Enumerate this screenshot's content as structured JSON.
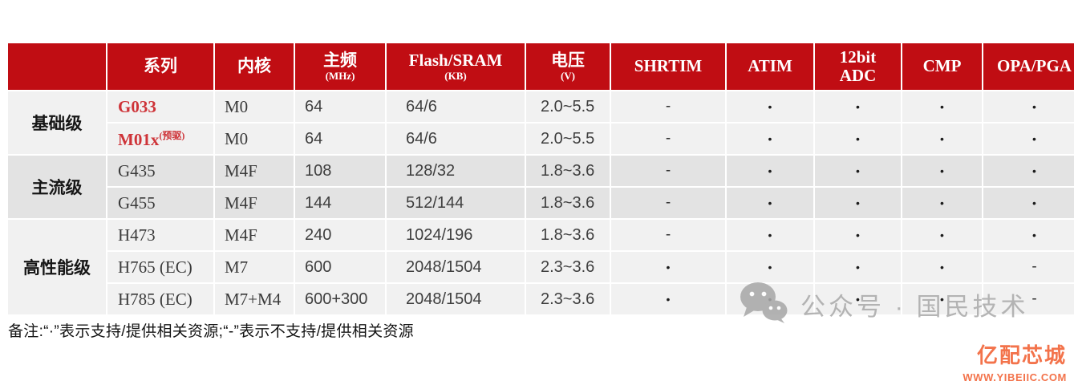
{
  "colors": {
    "header_bg": "#C00D13",
    "accent_red_text": "#CE3338",
    "band_light": "#F1F1F1",
    "band_dark": "#E3E3E3",
    "brand_orange": "#F3734B",
    "watermark_gray": "#ABABAB"
  },
  "table": {
    "columns": [
      {
        "label": "",
        "sub": ""
      },
      {
        "label": "系列",
        "sub": ""
      },
      {
        "label": "内核",
        "sub": ""
      },
      {
        "label": "主频",
        "sub": "(MHz)"
      },
      {
        "label": "Flash/SRAM",
        "sub": "(KB)"
      },
      {
        "label": "电压",
        "sub": "(V)"
      },
      {
        "label": "SHRTIM",
        "sub": ""
      },
      {
        "label": "ATIM",
        "sub": ""
      },
      {
        "label": "12bit",
        "sub": "ADC"
      },
      {
        "label": "CMP",
        "sub": ""
      },
      {
        "label": "OPA/PGA",
        "sub": ""
      }
    ],
    "flag_columns": [
      "SHRTIM",
      "ATIM",
      "12bit ADC",
      "CMP",
      "OPA/PGA"
    ],
    "groups": [
      {
        "name": "基础级",
        "shade": "light",
        "rows": [
          {
            "series": "G033",
            "sup": "",
            "red": true,
            "core": "M0",
            "freq": "64",
            "flash": "64/6",
            "volt": "2.0~5.5",
            "flags": [
              "-",
              "•",
              "•",
              "•",
              "•"
            ]
          },
          {
            "series": "M01x",
            "sup": "(预驱)",
            "red": true,
            "core": "M0",
            "freq": "64",
            "flash": "64/6",
            "volt": "2.0~5.5",
            "flags": [
              "-",
              "•",
              "•",
              "•",
              "•"
            ]
          }
        ]
      },
      {
        "name": "主流级",
        "shade": "dark",
        "rows": [
          {
            "series": "G435",
            "sup": "",
            "red": false,
            "core": "M4F",
            "freq": "108",
            "flash": "128/32",
            "volt": "1.8~3.6",
            "flags": [
              "-",
              "•",
              "•",
              "•",
              "•"
            ]
          },
          {
            "series": "G455",
            "sup": "",
            "red": false,
            "core": "M4F",
            "freq": "144",
            "flash": "512/144",
            "volt": "1.8~3.6",
            "flags": [
              "-",
              "•",
              "•",
              "•",
              "•"
            ]
          }
        ]
      },
      {
        "name": "高性能级",
        "shade": "light",
        "rows": [
          {
            "series": "H473",
            "sup": "",
            "red": false,
            "core": "M4F",
            "freq": "240",
            "flash": "1024/196",
            "volt": "1.8~3.6",
            "flags": [
              "-",
              "•",
              "•",
              "•",
              "•"
            ]
          },
          {
            "series": "H765 (EC)",
            "sup": "",
            "red": false,
            "core": "M7",
            "freq": "600",
            "flash": "2048/1504",
            "volt": "2.3~3.6",
            "flags": [
              "•",
              "•",
              "•",
              "•",
              "-"
            ]
          },
          {
            "series": "H785 (EC)",
            "sup": "",
            "red": false,
            "core": "M7+M4",
            "freq": "600+300",
            "flash": "2048/1504",
            "volt": "2.3~3.6",
            "flags": [
              "•",
              "•",
              "•",
              "•",
              "-"
            ]
          }
        ]
      }
    ]
  },
  "note": "备注:“·”表示支持/提供相关资源;“-”表示不支持/提供相关资源",
  "watermark": {
    "text": "公众号 · 国民技术"
  },
  "brand": {
    "name": "亿配芯城",
    "url": "WWW.YIBEIIC.COM"
  }
}
